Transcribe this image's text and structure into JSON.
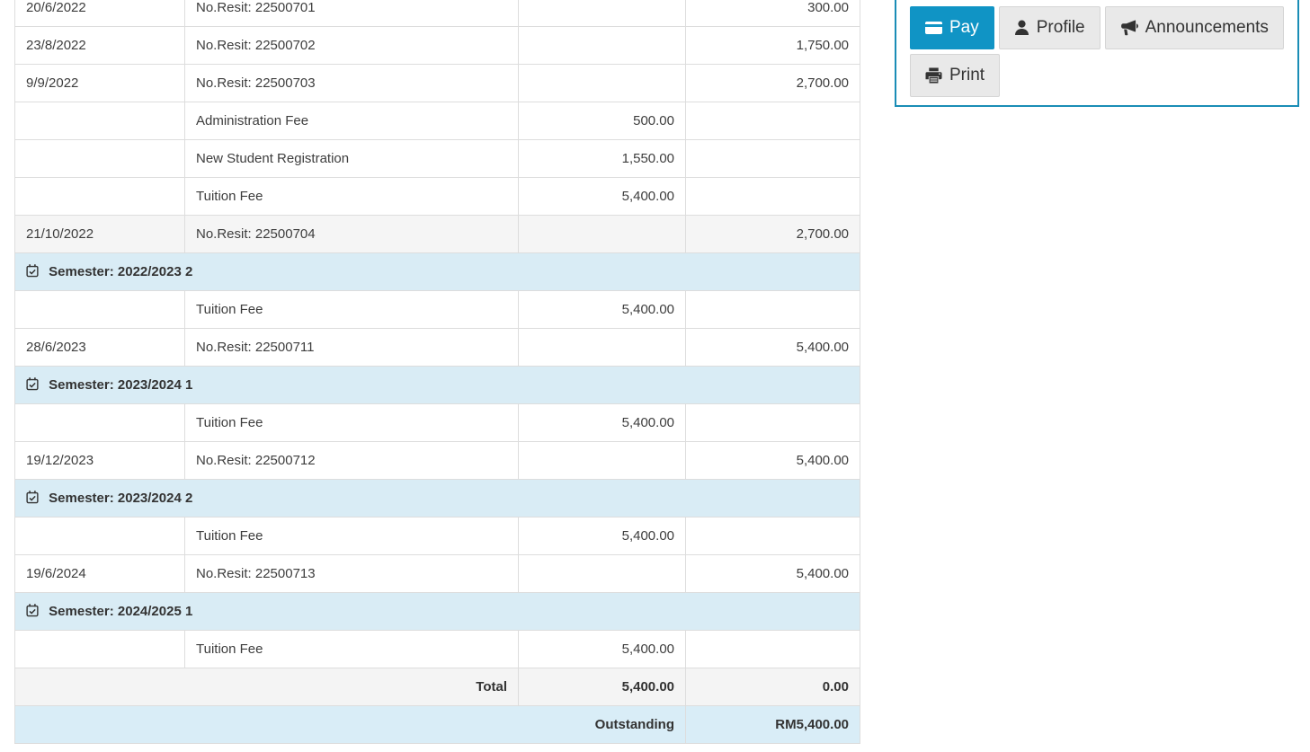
{
  "statement_table": {
    "rows": [
      {
        "type": "receipt",
        "date": "20/6/2022",
        "description": "No.Resit: 22500701",
        "amount": "",
        "paid": "300.00"
      },
      {
        "type": "receipt",
        "date": "23/8/2022",
        "description": "No.Resit: 22500702",
        "amount": "",
        "paid": "1,750.00"
      },
      {
        "type": "receipt",
        "date": "9/9/2022",
        "description": "No.Resit: 22500703",
        "amount": "",
        "paid": "2,700.00"
      },
      {
        "type": "charge",
        "date": "",
        "description": "Administration Fee",
        "amount": "500.00",
        "paid": ""
      },
      {
        "type": "charge",
        "date": "",
        "description": "New Student Registration",
        "amount": "1,550.00",
        "paid": ""
      },
      {
        "type": "charge",
        "date": "",
        "description": "Tuition Fee",
        "amount": "5,400.00",
        "paid": ""
      },
      {
        "type": "receipt",
        "striped": true,
        "date": "21/10/2022",
        "description": "No.Resit: 22500704",
        "amount": "",
        "paid": "2,700.00"
      },
      {
        "type": "semester",
        "label": "Semester: 2022/2023 2"
      },
      {
        "type": "charge",
        "date": "",
        "description": "Tuition Fee",
        "amount": "5,400.00",
        "paid": ""
      },
      {
        "type": "receipt",
        "date": "28/6/2023",
        "description": "No.Resit: 22500711",
        "amount": "",
        "paid": "5,400.00"
      },
      {
        "type": "semester",
        "label": "Semester: 2023/2024 1"
      },
      {
        "type": "charge",
        "date": "",
        "description": "Tuition Fee",
        "amount": "5,400.00",
        "paid": ""
      },
      {
        "type": "receipt",
        "date": "19/12/2023",
        "description": "No.Resit: 22500712",
        "amount": "",
        "paid": "5,400.00"
      },
      {
        "type": "semester",
        "label": "Semester: 2023/2024 2"
      },
      {
        "type": "charge",
        "date": "",
        "description": "Tuition Fee",
        "amount": "5,400.00",
        "paid": ""
      },
      {
        "type": "receipt",
        "date": "19/6/2024",
        "description": "No.Resit: 22500713",
        "amount": "",
        "paid": "5,400.00"
      },
      {
        "type": "semester",
        "label": "Semester: 2024/2025 1"
      },
      {
        "type": "charge",
        "date": "",
        "description": "Tuition Fee",
        "amount": "5,400.00",
        "paid": ""
      },
      {
        "type": "total",
        "label": "Total",
        "amount": "5,400.00",
        "paid": "0.00"
      },
      {
        "type": "outstanding",
        "label": "Outstanding",
        "value": "RM5,400.00"
      }
    ]
  },
  "actions_panel": {
    "buttons": [
      {
        "label": "Pay",
        "icon": "credit-card-icon",
        "active": true
      },
      {
        "label": "Profile",
        "icon": "user-icon",
        "active": false
      },
      {
        "label": "Announcements",
        "icon": "bullhorn-icon",
        "active": false
      },
      {
        "label": "Print",
        "icon": "print-icon",
        "active": false
      }
    ]
  },
  "colors": {
    "accent": "#1094c5",
    "panel_border": "#1a8db6",
    "semester_row_bg": "#d9ecf5",
    "outstanding_row_bg": "#d9edf7",
    "total_row_bg": "#f4f4f4",
    "striped_row_bg": "#f5f5f5",
    "table_border": "#dddddd",
    "text": "#3d3d3d"
  }
}
